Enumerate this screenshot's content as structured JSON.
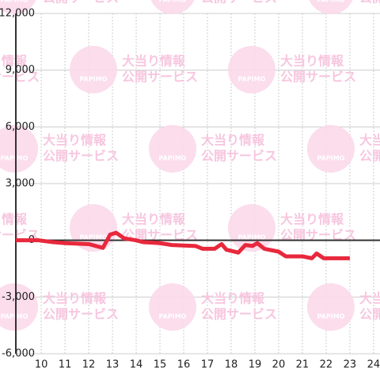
{
  "watermark": {
    "brand": "PAPIMO",
    "line1": "大当り情報",
    "line2": "公開サービス"
  },
  "chart_data": {
    "type": "line",
    "x": [
      8.93,
      9.9,
      10.5,
      11,
      12,
      12.6,
      12.9,
      13.15,
      13.5,
      14,
      14.3,
      15,
      15.5,
      16.5,
      16.8,
      17.3,
      17.6,
      17.8,
      18.3,
      18.6,
      18.9,
      19.1,
      19.4,
      20,
      20.3,
      21,
      21.4,
      21.6,
      21.9,
      23
    ],
    "series": [
      {
        "color": "#e8283c",
        "values": [
          0,
          0,
          -100,
          -150,
          -200,
          -400,
          300,
          400,
          100,
          0,
          -100,
          -150,
          -250,
          -300,
          -450,
          -450,
          -200,
          -500,
          -650,
          -250,
          -300,
          -150,
          -450,
          -600,
          -850,
          -850,
          -950,
          -700,
          -950,
          -950
        ]
      }
    ],
    "xlim": [
      8.93,
      24.27
    ],
    "xticks": [
      10,
      11,
      12,
      13,
      14,
      15,
      16,
      17,
      18,
      19,
      20,
      21,
      22,
      23,
      24
    ],
    "ylim": [
      -6000,
      12000
    ],
    "yticks": [
      {
        "value": -6000,
        "label": "-6,000"
      },
      {
        "value": -3000,
        "label": "-3,000"
      },
      0,
      {
        "value": 3000,
        "label": "3,000"
      },
      {
        "value": 6000,
        "label": "6,000"
      },
      {
        "value": 9000,
        "label": "9,000"
      },
      {
        "value": 12000,
        "label": "12,000"
      }
    ],
    "grid": true
  }
}
